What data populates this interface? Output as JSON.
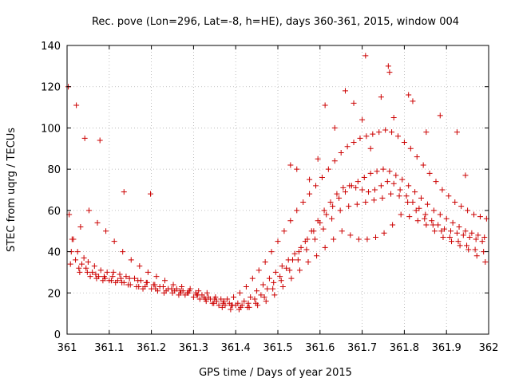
{
  "chart_data": {
    "type": "scatter",
    "title": "Rec. pove (Lon=296, Lat=-8, h=HE), days 360-361, 2015, window 004",
    "xlabel": "GPS time / Days of year 2015",
    "ylabel": "STEC from uqrg / TECUs",
    "xlim": [
      361,
      362
    ],
    "ylim": [
      0,
      140
    ],
    "x_ticks": [
      "361",
      "361.1",
      "361.2",
      "361.3",
      "361.4",
      "361.5",
      "361.6",
      "361.7",
      "361.8",
      "361.9",
      "362"
    ],
    "y_ticks": [
      "0",
      "20",
      "40",
      "60",
      "80",
      "100",
      "120",
      "140"
    ],
    "x_tick_values": [
      361,
      361.1,
      361.2,
      361.3,
      361.4,
      361.5,
      361.6,
      361.7,
      361.8,
      361.9,
      362
    ],
    "y_tick_values": [
      0,
      20,
      40,
      60,
      80,
      100,
      120,
      140
    ],
    "grid": true,
    "marker": "+",
    "marker_color": "#cc0000",
    "series": [
      {
        "x": [
          361.005,
          361.015,
          361.025,
          361.04,
          361.05,
          361.065,
          361.08,
          361.095,
          361.11,
          361.125,
          361.14,
          361.16,
          361.175,
          361.19,
          361.205,
          361.22,
          361.24,
          361.26,
          361.275,
          361.29,
          361.305,
          361.32,
          361.335,
          361.35,
          361.365,
          361.38,
          361.395,
          361.41,
          361.425,
          361.44,
          361.455,
          361.47,
          361.485,
          361.5,
          361.515,
          361.53,
          361.545,
          361.56,
          361.575,
          361.59,
          361.605,
          361.62,
          361.635,
          361.65,
          361.665,
          361.68,
          361.695,
          361.71,
          361.725,
          361.74,
          361.755,
          361.77,
          361.785,
          361.8,
          361.815,
          361.83,
          361.845,
          361.86,
          361.875,
          361.89,
          361.905,
          361.92,
          361.935,
          361.95,
          361.965,
          361.98,
          361.995
        ],
        "y": [
          58,
          46,
          40,
          37,
          35,
          33,
          31,
          30,
          30,
          29,
          28,
          27,
          26,
          25,
          24,
          23,
          22,
          22,
          21,
          21,
          20,
          19,
          18,
          17,
          17,
          17,
          18,
          20,
          23,
          27,
          31,
          35,
          40,
          45,
          50,
          55,
          60,
          64,
          68,
          72,
          76,
          80,
          84,
          88,
          91,
          93,
          95,
          96,
          97,
          98,
          99,
          98,
          96,
          93,
          90,
          86,
          82,
          78,
          74,
          70,
          67,
          64,
          62,
          60,
          58,
          57,
          56
        ]
      },
      {
        "x": [
          361.01,
          361.02,
          361.035,
          361.045,
          361.06,
          361.075,
          361.09,
          361.105,
          361.12,
          361.135,
          361.15,
          361.165,
          361.18,
          361.2,
          361.215,
          361.23,
          361.25,
          361.265,
          361.28,
          361.3,
          361.315,
          361.33,
          361.345,
          361.36,
          361.375,
          361.39,
          361.405,
          361.42,
          361.435,
          361.45,
          361.465,
          361.48,
          361.495,
          361.51,
          361.525,
          361.54,
          361.555,
          361.57,
          361.585,
          361.6,
          361.615,
          361.63,
          361.645,
          361.66,
          361.675,
          361.69,
          361.705,
          361.72,
          361.735,
          361.75,
          361.765,
          361.78,
          361.795,
          361.81,
          361.825,
          361.84,
          361.855,
          361.87,
          361.885,
          361.9,
          361.915,
          361.93,
          361.945,
          361.96,
          361.975,
          361.99
        ],
        "y": [
          40,
          36,
          34,
          32,
          30,
          28,
          27,
          26,
          26,
          25,
          24,
          23,
          22,
          22,
          21,
          20,
          20,
          19,
          19,
          18,
          17,
          16,
          15,
          14,
          14,
          14,
          15,
          16,
          18,
          21,
          24,
          27,
          30,
          33,
          36,
          39,
          42,
          46,
          50,
          54,
          58,
          62,
          66,
          69,
          72,
          74,
          76,
          78,
          79,
          80,
          79,
          77,
          75,
          72,
          69,
          66,
          63,
          60,
          58,
          56,
          54,
          52,
          50,
          49,
          48,
          47
        ]
      },
      {
        "x": [
          361.03,
          361.055,
          361.07,
          361.085,
          361.1,
          361.115,
          361.13,
          361.145,
          361.17,
          361.185,
          361.21,
          361.235,
          361.255,
          361.27,
          361.285,
          361.31,
          361.325,
          361.34,
          361.355,
          361.37,
          361.385,
          361.4,
          361.415,
          361.43,
          361.445,
          361.46,
          361.475,
          361.49,
          361.505,
          361.52,
          361.535,
          361.55,
          361.565,
          361.58,
          361.595,
          361.61,
          361.625,
          361.64,
          361.655,
          361.67,
          361.685,
          361.7,
          361.715,
          361.73,
          361.745,
          361.76,
          361.775,
          361.79,
          361.805,
          361.82,
          361.835,
          361.85,
          361.865,
          361.88,
          361.895,
          361.91,
          361.925,
          361.94,
          361.955,
          361.97,
          361.985
        ],
        "y": [
          30,
          28,
          27,
          26,
          26,
          25,
          25,
          24,
          23,
          23,
          22,
          21,
          21,
          20,
          20,
          19,
          18,
          17,
          16,
          15,
          15,
          14,
          14,
          15,
          17,
          19,
          22,
          25,
          28,
          32,
          36,
          40,
          45,
          50,
          55,
          60,
          64,
          68,
          71,
          72,
          71,
          70,
          69,
          70,
          72,
          74,
          73,
          70,
          67,
          64,
          61,
          58,
          55,
          53,
          51,
          50,
          49,
          48,
          47,
          46,
          45
        ]
      },
      {
        "x": [
          361.008,
          361.028,
          361.048,
          361.068,
          361.088,
          361.108,
          361.128,
          361.148,
          361.168,
          361.188,
          361.208,
          361.228,
          361.248,
          361.268,
          361.288,
          361.308,
          361.328,
          361.348,
          361.368,
          361.388,
          361.408,
          361.428,
          361.448,
          361.468,
          361.488,
          361.508,
          361.528,
          361.548,
          361.568,
          361.588,
          361.608,
          361.628,
          361.648,
          361.668,
          361.688,
          361.708,
          361.728,
          361.748,
          361.768,
          361.788,
          361.808,
          361.828,
          361.848,
          361.868,
          361.888,
          361.908,
          361.928,
          361.948,
          361.968,
          361.988
        ],
        "y": [
          34,
          32,
          30,
          29,
          28,
          28,
          27,
          27,
          26,
          25,
          24,
          23,
          22,
          21,
          20,
          19,
          17,
          15,
          13,
          12,
          12,
          13,
          15,
          18,
          22,
          26,
          31,
          36,
          41,
          46,
          51,
          56,
          60,
          62,
          63,
          64,
          65,
          66,
          68,
          67,
          64,
          60,
          56,
          53,
          50,
          47,
          45,
          43,
          41,
          40
        ]
      },
      {
        "x": [
          361.012,
          361.032,
          361.052,
          361.072,
          361.092,
          361.112,
          361.132,
          361.152,
          361.172,
          361.192,
          361.212,
          361.232,
          361.252,
          361.272,
          361.292,
          361.312,
          361.332,
          361.352,
          361.372,
          361.392,
          361.412,
          361.432,
          361.452,
          361.472,
          361.492,
          361.512,
          361.532,
          361.552,
          361.572,
          361.592,
          361.612,
          361.632,
          361.652,
          361.672,
          361.692,
          361.712,
          361.732,
          361.752,
          361.772,
          361.792,
          361.812,
          361.832,
          361.852,
          361.872,
          361.892,
          361.912,
          361.932,
          361.952,
          361.972,
          361.992
        ],
        "y": [
          46,
          52,
          60,
          54,
          50,
          45,
          40,
          36,
          33,
          30,
          28,
          26,
          24,
          23,
          22,
          21,
          20,
          18,
          16,
          14,
          13,
          13,
          14,
          16,
          19,
          23,
          27,
          31,
          35,
          38,
          42,
          46,
          50,
          48,
          46,
          46,
          47,
          49,
          53,
          58,
          57,
          55,
          53,
          50,
          47,
          45,
          43,
          41,
          38,
          35
        ]
      },
      {
        "x": [
          361.003,
          361.022,
          361.042,
          361.078,
          361.135,
          361.198,
          361.53,
          361.545,
          361.575,
          361.595,
          361.612,
          361.635,
          361.66,
          361.68,
          361.7,
          361.708,
          361.72,
          361.745,
          361.762,
          361.765,
          361.775,
          361.81,
          361.82,
          361.852,
          361.885,
          361.925,
          361.945
        ],
        "y": [
          120,
          111,
          95,
          94,
          69,
          68,
          82,
          80,
          75,
          85,
          111,
          100,
          118,
          112,
          104,
          135,
          90,
          115,
          130,
          127,
          105,
          116,
          113,
          98,
          106,
          98,
          77
        ]
      }
    ]
  }
}
